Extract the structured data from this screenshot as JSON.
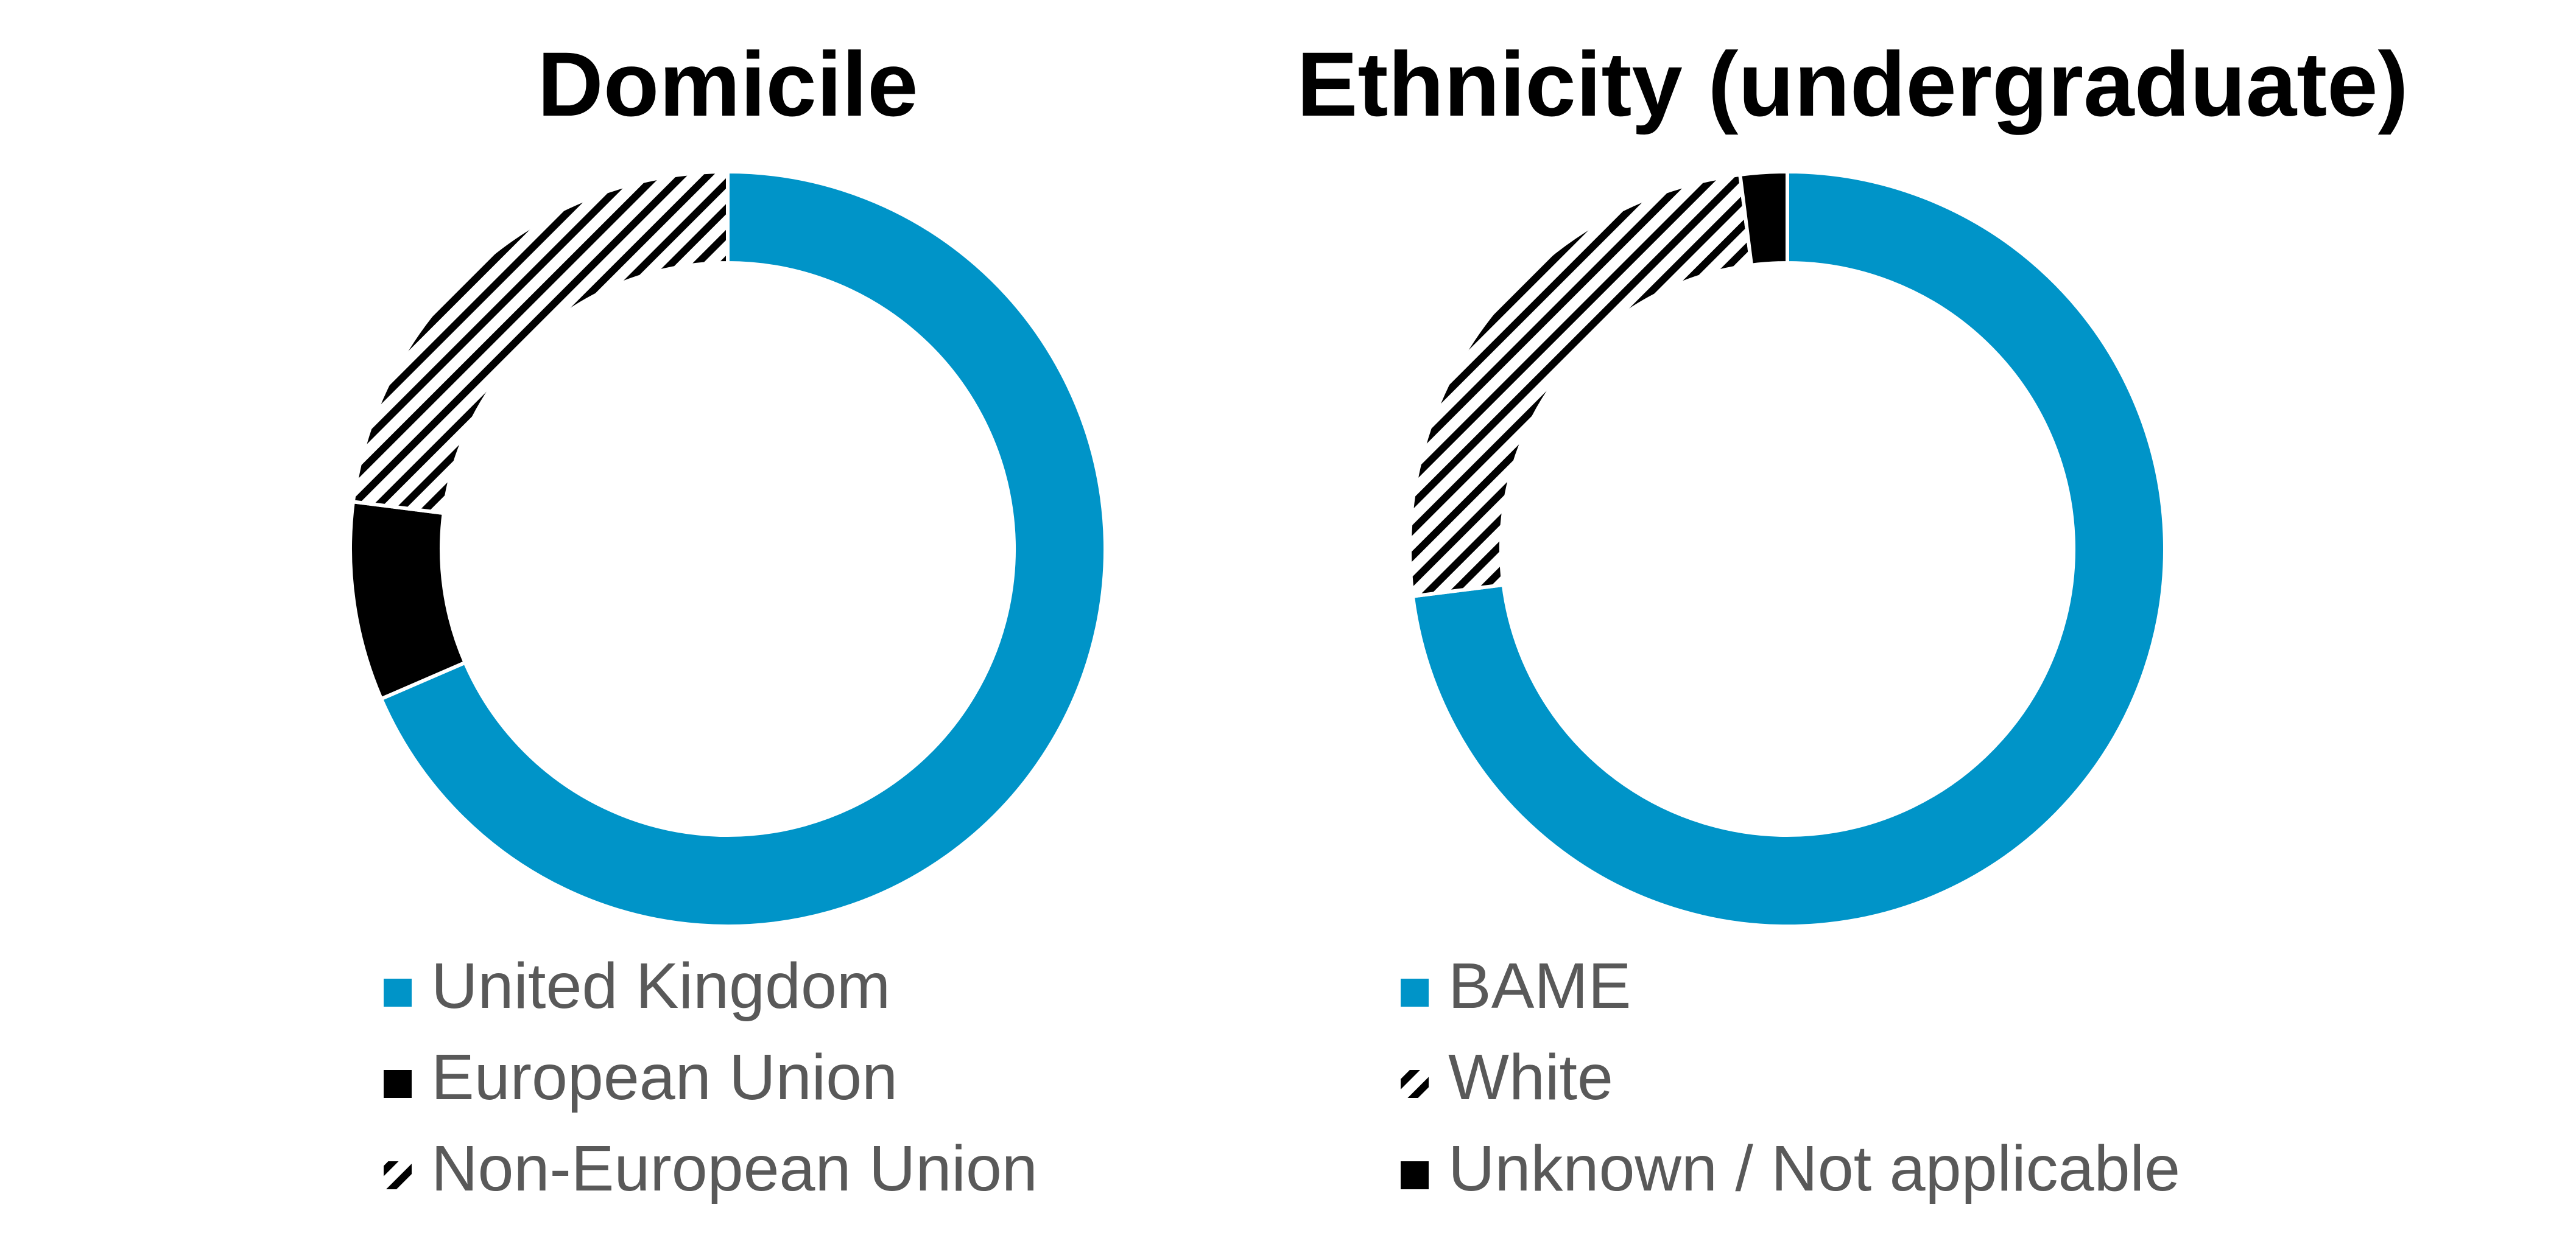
{
  "chart_data": [
    {
      "type": "pie",
      "title": "Domicile",
      "series": [
        {
          "name": "United Kingdom",
          "value": 68.5,
          "color": "#0094c8",
          "pattern": "solid"
        },
        {
          "name": "European Union",
          "value": 8.5,
          "color": "#000000",
          "pattern": "solid"
        },
        {
          "name": "Non-European Union",
          "value": 23.0,
          "color": "#000000",
          "pattern": "diagonal-stripes"
        }
      ],
      "legend_position": "bottom"
    },
    {
      "type": "pie",
      "title": "Ethnicity (undergraduate)",
      "series": [
        {
          "name": "BAME",
          "value": 73.0,
          "color": "#0094c8",
          "pattern": "solid"
        },
        {
          "name": "White",
          "value": 25.0,
          "color": "#000000",
          "pattern": "diagonal-stripes"
        },
        {
          "name": "Unknown / Not applicable",
          "value": 2.0,
          "color": "#000000",
          "pattern": "solid"
        }
      ],
      "legend_position": "bottom"
    }
  ]
}
